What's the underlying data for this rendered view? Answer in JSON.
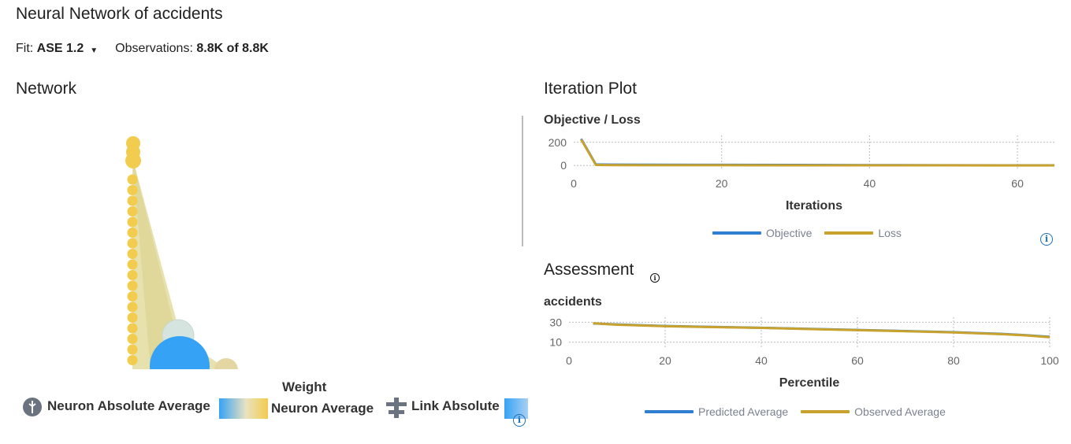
{
  "page": {
    "title": "Neural Network of accidents",
    "fit_label": "Fit:",
    "fit_value": "ASE 1.2",
    "obs_label": "Observations:",
    "obs_value": "8.8K of 8.8K"
  },
  "network": {
    "title": "Network",
    "legend_title": "Weight",
    "neuron_abs_label": "Neuron Absolute Average",
    "neuron_avg_label": "Neuron Average",
    "link_abs_label": "Link Absolute",
    "colors": {
      "yellow": "#f2cc4e",
      "blue": "#36a2f5",
      "link": "#e3dca0"
    }
  },
  "iteration": {
    "title": "Iteration Plot",
    "legend": {
      "objective": "Objective",
      "loss": "Loss"
    }
  },
  "assessment": {
    "title": "Assessment",
    "legend": {
      "predicted": "Predicted Average",
      "observed": "Observed Average"
    }
  },
  "chart_data": [
    {
      "type": "line",
      "title": "Objective / Loss",
      "xlabel": "Iterations",
      "ylabel": "",
      "xlim": [
        0,
        65
      ],
      "ylim": [
        -40,
        260
      ],
      "xticks": [
        0,
        20,
        40,
        60
      ],
      "yticks": [
        0,
        200
      ],
      "grid": true,
      "legend": "bottom",
      "series": [
        {
          "name": "Objective",
          "color": "#2f7fd1",
          "x": [
            1,
            3,
            5,
            10,
            20,
            30,
            40,
            50,
            60,
            65
          ],
          "y": [
            230,
            8,
            7,
            6,
            5,
            4,
            3,
            2,
            1,
            1
          ]
        },
        {
          "name": "Loss",
          "color": "#c9a22d",
          "x": [
            1,
            3,
            5,
            10,
            20,
            30,
            40,
            50,
            60,
            65
          ],
          "y": [
            225,
            4,
            3,
            2,
            2,
            1,
            1,
            1,
            0,
            0
          ]
        }
      ]
    },
    {
      "type": "line",
      "title": "accidents",
      "xlabel": "Percentile",
      "ylabel": "",
      "xlim": [
        0,
        100
      ],
      "ylim": [
        5,
        35
      ],
      "xticks": [
        0,
        20,
        40,
        60,
        80,
        100
      ],
      "yticks": [
        10,
        30
      ],
      "grid": true,
      "legend": "bottom",
      "series": [
        {
          "name": "Predicted Average",
          "color": "#2f7fd1",
          "x": [
            5,
            10,
            20,
            30,
            40,
            50,
            60,
            70,
            80,
            90,
            95,
            100
          ],
          "y": [
            28.8,
            27.8,
            26.2,
            25.3,
            24.4,
            23.4,
            22.3,
            21.2,
            20.0,
            18.3,
            17.0,
            15.4
          ]
        },
        {
          "name": "Observed Average",
          "color": "#c9a22d",
          "x": [
            5,
            10,
            20,
            30,
            40,
            50,
            60,
            70,
            80,
            90,
            95,
            100
          ],
          "y": [
            29.0,
            27.5,
            26.0,
            25.1,
            24.3,
            23.2,
            22.1,
            21.0,
            19.8,
            18.0,
            16.8,
            15.0
          ]
        }
      ]
    }
  ]
}
